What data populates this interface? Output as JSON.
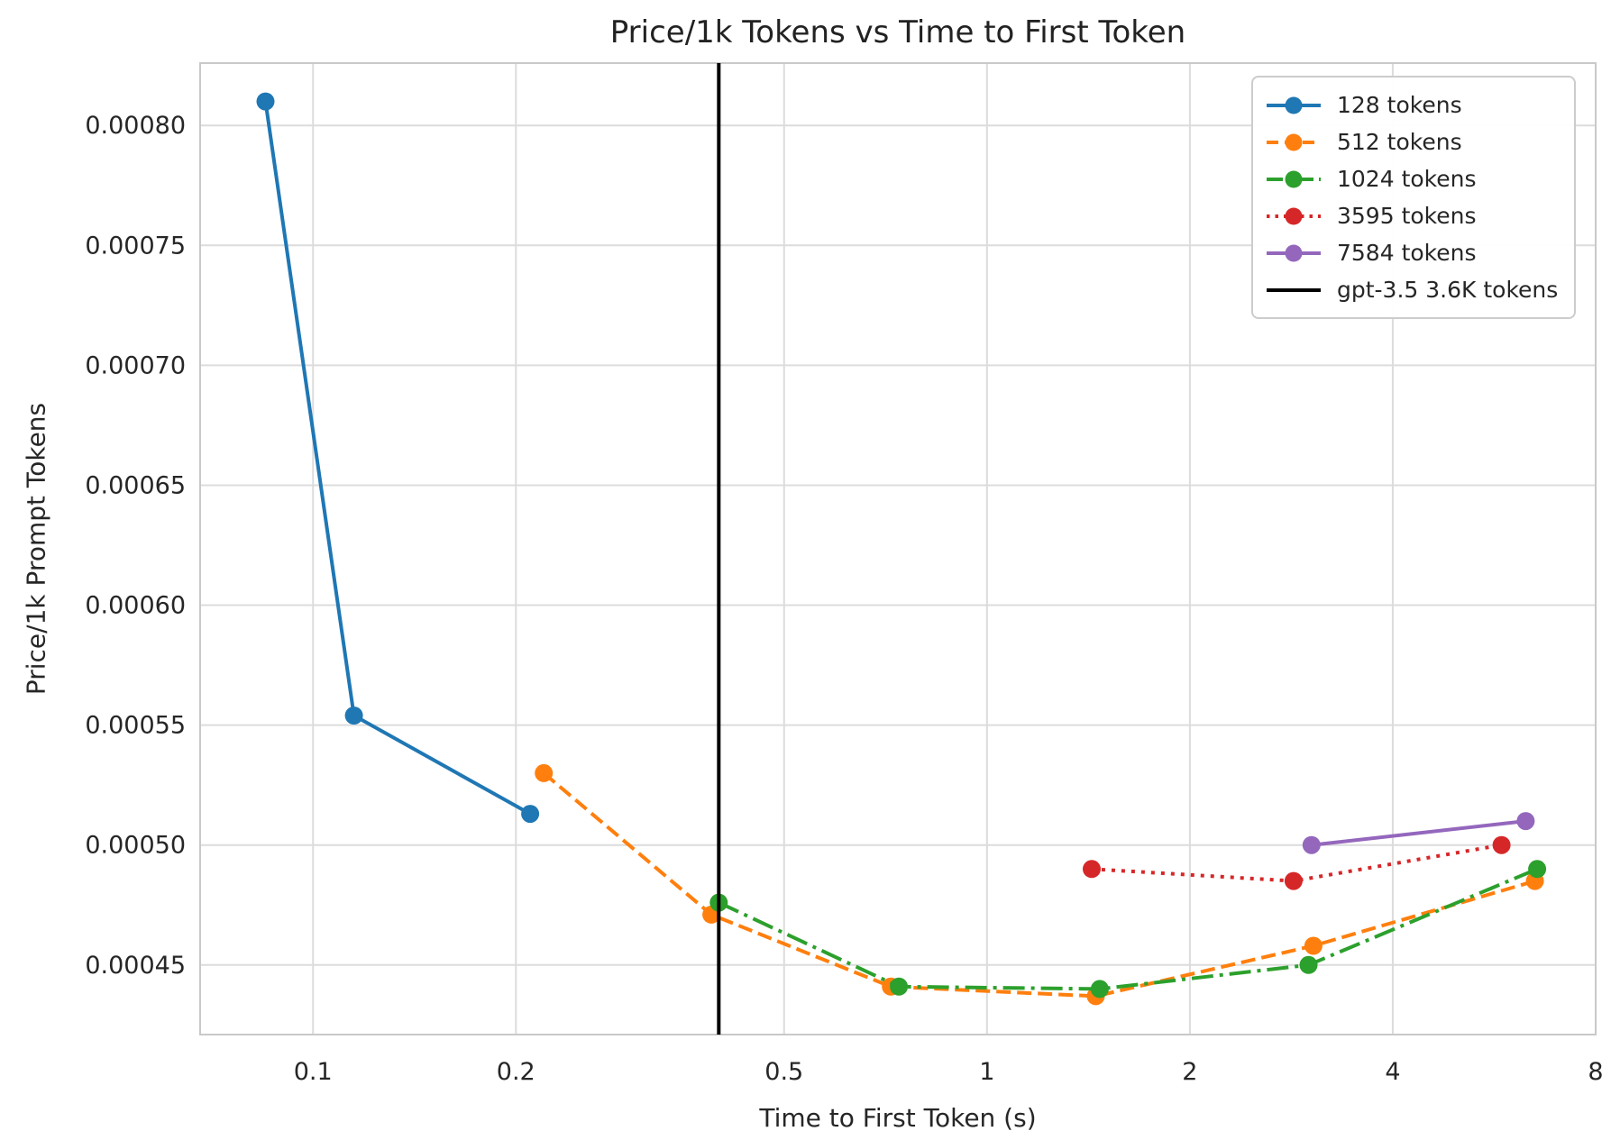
{
  "chart_data": {
    "type": "line",
    "title": "Price/1k Tokens vs Time to First Token",
    "xlabel": "Time to First Token (s)",
    "ylabel": "Price/1k Prompt Tokens",
    "x_scale": "log",
    "x_range": [
      0.068,
      8.0
    ],
    "y_range": [
      0.000421,
      0.000826
    ],
    "x_ticks": [
      0.1,
      0.2,
      0.5,
      1,
      2,
      4,
      8
    ],
    "x_tick_labels": [
      "0.1",
      "0.2",
      "0.5",
      "1",
      "2",
      "4",
      "8"
    ],
    "y_ticks": [
      0.00045,
      0.0005,
      0.00055,
      0.0006,
      0.00065,
      0.0007,
      0.00075,
      0.0008
    ],
    "y_tick_labels": [
      "0.00045",
      "0.00050",
      "0.00055",
      "0.00060",
      "0.00065",
      "0.00070",
      "0.00075",
      "0.00080"
    ],
    "grid": true,
    "legend_position": "upper right",
    "series": [
      {
        "name": "128 tokens",
        "color": "#1f77b4",
        "linestyle": "solid",
        "marker": "circle",
        "points": [
          [
            0.085,
            0.00081
          ],
          [
            0.115,
            0.000554
          ],
          [
            0.21,
            0.000513
          ]
        ]
      },
      {
        "name": "512 tokens",
        "color": "#ff7f0e",
        "linestyle": "dashed",
        "marker": "circle",
        "points": [
          [
            0.22,
            0.00053
          ],
          [
            0.39,
            0.000471
          ],
          [
            0.72,
            0.000441
          ],
          [
            1.45,
            0.000437
          ],
          [
            3.05,
            0.000458
          ],
          [
            6.5,
            0.000485
          ]
        ]
      },
      {
        "name": "1024 tokens",
        "color": "#2ca02c",
        "linestyle": "dashdot",
        "marker": "circle",
        "points": [
          [
            0.4,
            0.000476
          ],
          [
            0.74,
            0.000441
          ],
          [
            1.47,
            0.00044
          ],
          [
            3.0,
            0.00045
          ],
          [
            6.55,
            0.00049
          ]
        ]
      },
      {
        "name": "3595 tokens",
        "color": "#d62728",
        "linestyle": "dotted",
        "marker": "circle",
        "points": [
          [
            1.43,
            0.00049
          ],
          [
            2.85,
            0.000485
          ],
          [
            5.8,
            0.0005
          ]
        ]
      },
      {
        "name": "7584 tokens",
        "color": "#9467bd",
        "linestyle": "solid",
        "marker": "circle",
        "points": [
          [
            3.03,
            0.0005
          ],
          [
            6.3,
            0.00051
          ]
        ]
      }
    ],
    "vline": {
      "x": 0.4,
      "color": "#000000",
      "label": "gpt-3.5 3.6K tokens"
    },
    "grid_color": "#dcdcdc",
    "spine_color": "#c9c9c9",
    "tick_color": "#262626"
  }
}
